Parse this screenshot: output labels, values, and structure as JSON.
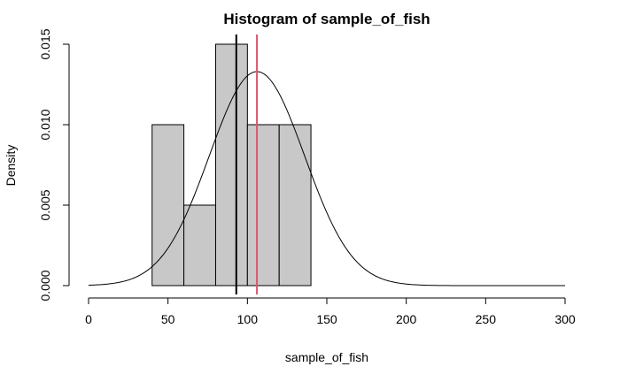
{
  "chart_data": {
    "type": "bar",
    "title": "Histogram of sample_of_fish",
    "xlabel": "sample_of_fish",
    "ylabel": "Density",
    "xlim": [
      0,
      300
    ],
    "ylim": [
      0,
      0.015
    ],
    "x_ticks": [
      "0",
      "50",
      "100",
      "150",
      "200",
      "250",
      "300"
    ],
    "x_tick_values": [
      0,
      50,
      100,
      150,
      200,
      250,
      300
    ],
    "y_ticks": [
      "0.000",
      "0.005",
      "0.010",
      "0.015"
    ],
    "y_tick_values": [
      0,
      0.005,
      0.01,
      0.015
    ],
    "bins": [
      {
        "start": 40,
        "end": 60,
        "density": 0.01
      },
      {
        "start": 60,
        "end": 80,
        "density": 0.005
      },
      {
        "start": 80,
        "end": 100,
        "density": 0.015
      },
      {
        "start": 100,
        "end": 120,
        "density": 0.01
      },
      {
        "start": 120,
        "end": 140,
        "density": 0.01
      }
    ],
    "normal_curve": {
      "mean": 106,
      "sd": 30
    },
    "vertical_lines": [
      {
        "x": 93,
        "color": "#000000"
      },
      {
        "x": 106,
        "color": "#df536b"
      }
    ],
    "bar_color": "#c8c8c8",
    "grid": false,
    "legend": "none"
  }
}
